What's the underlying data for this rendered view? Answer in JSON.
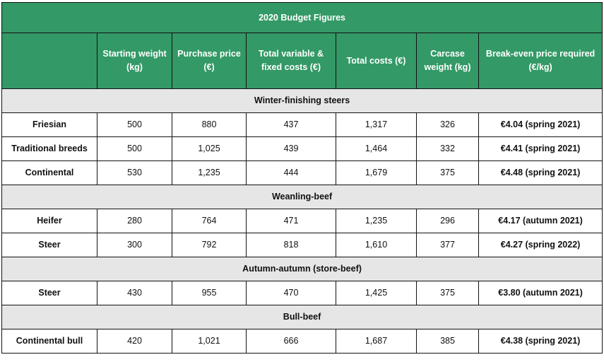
{
  "title": "2020 Budget Figures",
  "columns": [
    "",
    "Starting weight (kg)",
    "Purchase price (€)",
    "Total variable & fixed costs (€)",
    "Total costs (€)",
    "Carcase weight (kg)",
    "Break-even price required (€/kg)"
  ],
  "colors": {
    "header_green": "#339966",
    "section_gray": "#e7e6e6"
  },
  "sections": [
    {
      "name": "Winter-finishing steers",
      "rows": [
        [
          "Friesian",
          "500",
          "880",
          "437",
          "1,317",
          "326",
          "€4.04 (spring 2021)"
        ],
        [
          "Traditional breeds",
          "500",
          "1,025",
          "439",
          "1,464",
          "332",
          "€4.41 (spring 2021)"
        ],
        [
          "Continental",
          "530",
          "1,235",
          "444",
          "1,679",
          "375",
          "€4.48 (spring 2021)"
        ]
      ]
    },
    {
      "name": "Weanling-beef",
      "rows": [
        [
          "Heifer",
          "280",
          "764",
          "471",
          "1,235",
          "296",
          "€4.17 (autumn 2021)"
        ],
        [
          "Steer",
          "300",
          "792",
          "818",
          "1,610",
          "377",
          "€4.27 (spring 2022)"
        ]
      ]
    },
    {
      "name": "Autumn-autumn (store-beef)",
      "rows": [
        [
          "Steer",
          "430",
          "955",
          "470",
          "1,425",
          "375",
          "€3.80 (autumn 2021)"
        ]
      ]
    },
    {
      "name": "Bull-beef",
      "rows": [
        [
          "Continental bull",
          "420",
          "1,021",
          "666",
          "1,687",
          "385",
          "€4.38 (spring 2021)"
        ]
      ]
    }
  ]
}
